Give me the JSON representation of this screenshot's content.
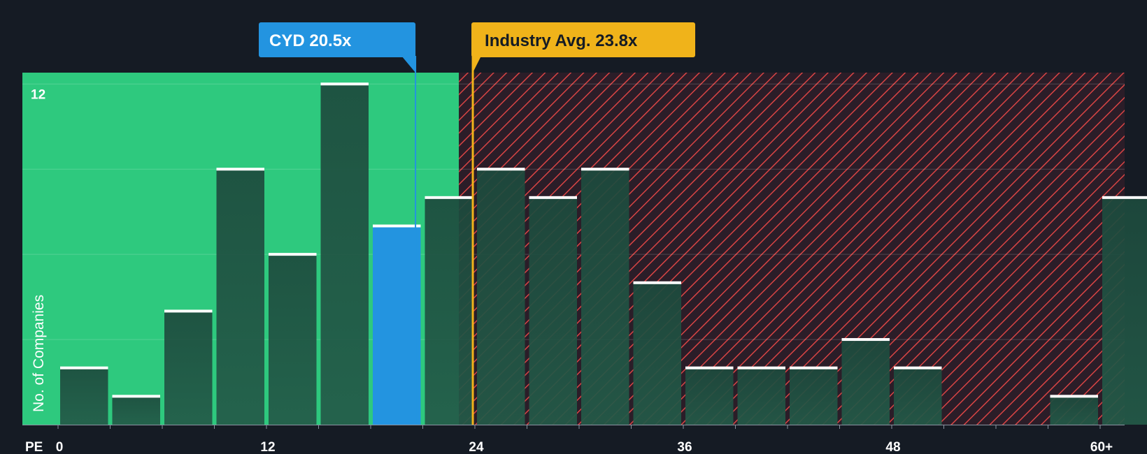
{
  "chart_data": {
    "type": "bar",
    "title": "",
    "xlabel": "PE",
    "ylabel": "No. of Companies",
    "xlim": [
      -3,
      62
    ],
    "ylim": [
      0,
      12.4
    ],
    "bin_width": 3,
    "bin_starts": [
      0,
      3,
      6,
      9,
      12,
      15,
      18,
      21,
      24,
      27,
      30,
      33,
      36,
      39,
      42,
      45,
      48,
      51,
      54,
      57,
      60
    ],
    "values": [
      2,
      1,
      4,
      9,
      6,
      12,
      7,
      8,
      9,
      8,
      9,
      5,
      2,
      2,
      2,
      3,
      2,
      0,
      0,
      1,
      8
    ],
    "highlight_bin_start": 18,
    "x_ticks": [
      {
        "value": 0,
        "label": "0"
      },
      {
        "value": 12,
        "label": "12"
      },
      {
        "value": 24,
        "label": "24"
      },
      {
        "value": 36,
        "label": "36"
      },
      {
        "value": 48,
        "label": "48"
      },
      {
        "value": 60,
        "label": "60+"
      }
    ],
    "y_ticks": [
      {
        "value": 12,
        "label": "12"
      }
    ],
    "gridlines_y": [
      3,
      6,
      9,
      12
    ],
    "fair_zone_end": 23,
    "company": {
      "label": "CYD 20.5x",
      "value": 20.5
    },
    "industry": {
      "label": "Industry Avg. 23.8x",
      "value": 23.8
    },
    "colors": {
      "background": "#151b24",
      "fair_zone": "#2ec97e",
      "overvalued_zone": "#2b1d28",
      "hatch": "#d94444",
      "bar_top": "#1d4a3d",
      "bar_bottom": "#235a48",
      "bar_cap": "#ffffff",
      "company": "#2394e0",
      "industry": "#f0b31a",
      "text": "#ffffff",
      "industry_text": "#151b24"
    }
  }
}
